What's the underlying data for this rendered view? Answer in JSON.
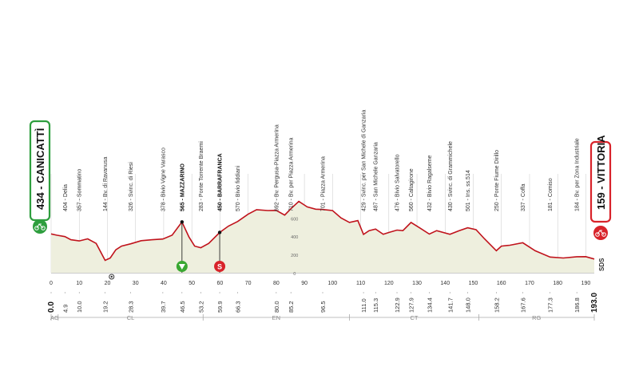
{
  "chart_data": {
    "type": "area",
    "x_unit": "km",
    "y_unit": "m",
    "xlim": [
      0,
      193.0
    ],
    "ylim": [
      0,
      800
    ],
    "y_ticks": [
      0,
      200,
      400,
      600
    ],
    "x_ticks": [
      0,
      10,
      20,
      30,
      40,
      50,
      60,
      70,
      80,
      90,
      100,
      110,
      120,
      130,
      140,
      150,
      160,
      170,
      180,
      190
    ],
    "profile": [
      {
        "km": 0,
        "alt": 434
      },
      {
        "km": 2,
        "alt": 420
      },
      {
        "km": 4.9,
        "alt": 404
      },
      {
        "km": 7,
        "alt": 370
      },
      {
        "km": 10,
        "alt": 357
      },
      {
        "km": 13,
        "alt": 380
      },
      {
        "km": 16,
        "alt": 330
      },
      {
        "km": 19.2,
        "alt": 144
      },
      {
        "km": 21,
        "alt": 170
      },
      {
        "km": 23,
        "alt": 260
      },
      {
        "km": 25,
        "alt": 300
      },
      {
        "km": 28.3,
        "alt": 326
      },
      {
        "km": 32,
        "alt": 360
      },
      {
        "km": 36,
        "alt": 370
      },
      {
        "km": 39.7,
        "alt": 378
      },
      {
        "km": 43,
        "alt": 420
      },
      {
        "km": 46.5,
        "alt": 565
      },
      {
        "km": 49,
        "alt": 400
      },
      {
        "km": 51,
        "alt": 300
      },
      {
        "km": 53.2,
        "alt": 283
      },
      {
        "km": 56,
        "alt": 330
      },
      {
        "km": 59.9,
        "alt": 450
      },
      {
        "km": 63,
        "alt": 520
      },
      {
        "km": 66.3,
        "alt": 570
      },
      {
        "km": 70,
        "alt": 650
      },
      {
        "km": 73,
        "alt": 700
      },
      {
        "km": 77,
        "alt": 690
      },
      {
        "km": 80,
        "alt": 692
      },
      {
        "km": 83,
        "alt": 640
      },
      {
        "km": 85.2,
        "alt": 710
      },
      {
        "km": 88,
        "alt": 790
      },
      {
        "km": 91,
        "alt": 730
      },
      {
        "km": 94,
        "alt": 705
      },
      {
        "km": 96.5,
        "alt": 701
      },
      {
        "km": 100,
        "alt": 690
      },
      {
        "km": 103,
        "alt": 610
      },
      {
        "km": 106,
        "alt": 560
      },
      {
        "km": 109,
        "alt": 580
      },
      {
        "km": 111.0,
        "alt": 429
      },
      {
        "km": 113,
        "alt": 470
      },
      {
        "km": 115.3,
        "alt": 487
      },
      {
        "km": 118,
        "alt": 430
      },
      {
        "km": 120,
        "alt": 450
      },
      {
        "km": 122.9,
        "alt": 476
      },
      {
        "km": 125,
        "alt": 470
      },
      {
        "km": 127.9,
        "alt": 560
      },
      {
        "km": 131,
        "alt": 500
      },
      {
        "km": 134.4,
        "alt": 432
      },
      {
        "km": 137,
        "alt": 470
      },
      {
        "km": 141.7,
        "alt": 430
      },
      {
        "km": 145,
        "alt": 470
      },
      {
        "km": 148.0,
        "alt": 501
      },
      {
        "km": 151,
        "alt": 480
      },
      {
        "km": 154,
        "alt": 380
      },
      {
        "km": 158.2,
        "alt": 250
      },
      {
        "km": 160,
        "alt": 300
      },
      {
        "km": 163,
        "alt": 310
      },
      {
        "km": 167.6,
        "alt": 337
      },
      {
        "km": 172,
        "alt": 250
      },
      {
        "km": 177.3,
        "alt": 181
      },
      {
        "km": 182,
        "alt": 170
      },
      {
        "km": 186.8,
        "alt": 184
      },
      {
        "km": 190,
        "alt": 185
      },
      {
        "km": 193.0,
        "alt": 159
      }
    ],
    "waypoints": [
      {
        "km": 4.9,
        "alt": 404,
        "name": "Delia",
        "km_label": "4.9"
      },
      {
        "km": 10.0,
        "alt": 357,
        "name": "Sommatino",
        "km_label": "10.0"
      },
      {
        "km": 19.2,
        "alt": 144,
        "name": "Bv. di Ravanusa",
        "km_label": "19.2"
      },
      {
        "km": 28.3,
        "alt": 326,
        "name": "Svinc. di Riesi",
        "km_label": "28.3"
      },
      {
        "km": 39.7,
        "alt": 378,
        "name": "Bivio Vigne Varasco",
        "km_label": "39.7"
      },
      {
        "km": 46.5,
        "alt": 565,
        "name": "MAZZARINO",
        "km_label": "46.5",
        "major": true
      },
      {
        "km": 53.2,
        "alt": 283,
        "name": "Ponte Torrente Braemi",
        "km_label": "53.2"
      },
      {
        "km": 59.9,
        "alt": 450,
        "name": "BARRAFRANCA",
        "km_label": "59.9",
        "major": true
      },
      {
        "km": 66.3,
        "alt": 570,
        "name": "Bivio fiddiani",
        "km_label": "66.3"
      },
      {
        "km": 80.0,
        "alt": 692,
        "name": "Bv. Pergusa-Piazza Armerina",
        "km_label": "80.0"
      },
      {
        "km": 85.2,
        "alt": 710,
        "name": "Bv. per Piazza Armerina",
        "km_label": "85.2"
      },
      {
        "km": 96.5,
        "alt": 701,
        "name": "Piazza Armerina",
        "km_label": "96.5"
      },
      {
        "km": 111.0,
        "alt": 429,
        "name": "Svinc. per San Michele di Ganzaria",
        "km_label": "111.0"
      },
      {
        "km": 115.3,
        "alt": 487,
        "name": "San Michele Ganzaria",
        "km_label": "115.3"
      },
      {
        "km": 122.9,
        "alt": 476,
        "name": "Bivio Salvatorello",
        "km_label": "122.9"
      },
      {
        "km": 127.9,
        "alt": 560,
        "name": "Caltagirone",
        "km_label": "127.9"
      },
      {
        "km": 134.4,
        "alt": 432,
        "name": "Bivio Ragalseme",
        "km_label": "134.4"
      },
      {
        "km": 141.7,
        "alt": 430,
        "name": "Svinc. di Grammichele",
        "km_label": "141.7"
      },
      {
        "km": 148.0,
        "alt": 501,
        "name": "Ins. ss.514",
        "km_label": "148.0"
      },
      {
        "km": 158.2,
        "alt": 250,
        "name": "Ponte Fiume Dirillo",
        "km_label": "158.2"
      },
      {
        "km": 167.6,
        "alt": 337,
        "name": "Coffa",
        "km_label": "167.6"
      },
      {
        "km": 177.3,
        "alt": 181,
        "name": "Comiso",
        "km_label": "177.3"
      },
      {
        "km": 186.8,
        "alt": 184,
        "name": "Bv. per Zona Industriale",
        "km_label": "186.8"
      }
    ],
    "start": {
      "name": "434 - CANICATTÌ",
      "km_label": "0.0",
      "color": "#2e9e3e"
    },
    "finish": {
      "name": "159 - VITTORIA",
      "km_label": "193.0",
      "color": "#d8232a"
    },
    "markers": [
      {
        "km": 46.5,
        "type": "kom",
        "color": "#3aa832"
      },
      {
        "km": 59.9,
        "type": "sprint",
        "label": "S",
        "color": "#d8232a"
      },
      {
        "km": 21.5,
        "type": "feed-zone"
      }
    ],
    "regions": [
      {
        "code": "AG",
        "from": 0,
        "to": 2.5
      },
      {
        "code": "CL",
        "from": 2.5,
        "to": 54
      },
      {
        "code": "EN",
        "from": 54,
        "to": 106
      },
      {
        "code": "CT",
        "from": 106,
        "to": 152
      },
      {
        "code": "RG",
        "from": 152,
        "to": 193
      }
    ],
    "sds_label": "SDS"
  },
  "colors": {
    "profile_line": "#c0131c",
    "fill": "#eeefde",
    "grid": "#c9c9c9",
    "start_green": "#2e9e3e",
    "finish_red": "#d8232a"
  }
}
